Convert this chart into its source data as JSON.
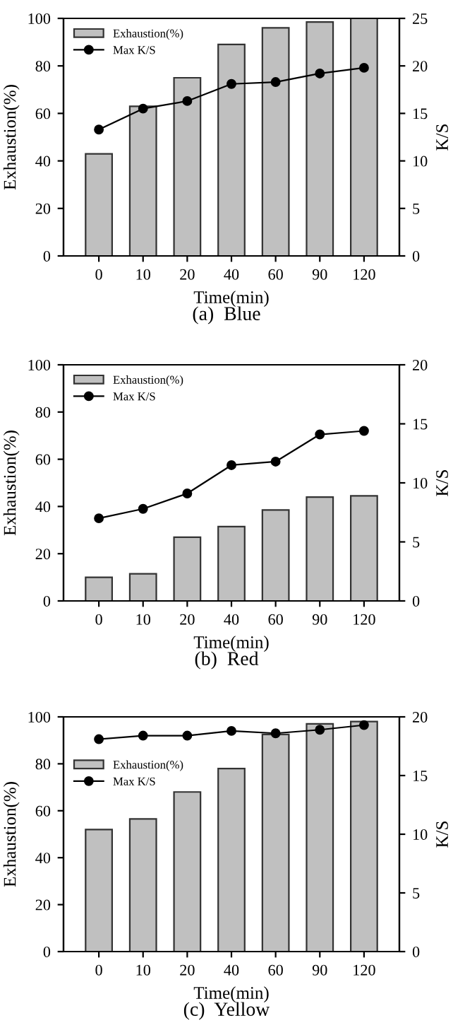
{
  "chart_data": [
    {
      "type": "bar",
      "xlabel": "Time(min)",
      "ylabel": "Exhaustion(%)",
      "y2label": "K/S",
      "annotations": [
        "(a)  Blue"
      ],
      "categories": [
        "0",
        "10",
        "20",
        "40",
        "60",
        "90",
        "120"
      ],
      "ylim": [
        0,
        100
      ],
      "yticks": [
        0,
        20,
        40,
        60,
        80,
        100
      ],
      "y2lim": [
        0,
        25
      ],
      "y2ticks": [
        0,
        5,
        10,
        15,
        20,
        25
      ],
      "legend": "top left",
      "grid": false,
      "series": [
        {
          "name": "Exhaustion(%)",
          "color": "#c0c0c0",
          "values": [
            43,
            63,
            75,
            89,
            96,
            98.5,
            100
          ]
        },
        {
          "name": "Max K/S",
          "type": "line",
          "axis": "y2",
          "color": "#000000",
          "marker": "circle",
          "values": [
            13.3,
            15.5,
            16.3,
            18.1,
            18.3,
            19.2,
            19.8
          ]
        }
      ]
    },
    {
      "type": "bar",
      "xlabel": "Time(min)",
      "ylabel": "Exhaustion(%)",
      "y2label": "K/S",
      "annotations": [
        "(b)  Red"
      ],
      "categories": [
        "0",
        "10",
        "20",
        "40",
        "60",
        "90",
        "120"
      ],
      "ylim": [
        0,
        100
      ],
      "yticks": [
        0,
        20,
        40,
        60,
        80,
        100
      ],
      "y2lim": [
        0,
        20
      ],
      "y2ticks": [
        0,
        5,
        10,
        15,
        20
      ],
      "legend": "top left",
      "grid": false,
      "series": [
        {
          "name": "Exhaustion(%)",
          "color": "#c0c0c0",
          "values": [
            10,
            11.5,
            27,
            31.5,
            38.5,
            44,
            44.5
          ]
        },
        {
          "name": "Max K/S",
          "type": "line",
          "axis": "y2",
          "color": "#000000",
          "marker": "circle",
          "values": [
            7.0,
            7.8,
            9.1,
            11.5,
            11.8,
            14.1,
            14.4
          ]
        }
      ]
    },
    {
      "type": "bar",
      "xlabel": "Time(min)",
      "ylabel": "Exhaustion(%)",
      "y2label": "K/S",
      "annotations": [
        "(c)  Yellow"
      ],
      "categories": [
        "0",
        "10",
        "20",
        "40",
        "60",
        "90",
        "120"
      ],
      "ylim": [
        0,
        100
      ],
      "yticks": [
        0,
        20,
        40,
        60,
        80,
        100
      ],
      "y2lim": [
        0,
        20
      ],
      "y2ticks": [
        0,
        5,
        10,
        15,
        20
      ],
      "legend": "left",
      "grid": false,
      "series": [
        {
          "name": "Exhaustion(%)",
          "color": "#c0c0c0",
          "values": [
            52,
            56.5,
            68,
            78,
            92.5,
            97,
            98
          ]
        },
        {
          "name": "Max K/S",
          "type": "line",
          "axis": "y2",
          "color": "#000000",
          "marker": "circle",
          "values": [
            18.1,
            18.4,
            18.4,
            18.8,
            18.6,
            18.9,
            19.3
          ]
        }
      ]
    }
  ]
}
